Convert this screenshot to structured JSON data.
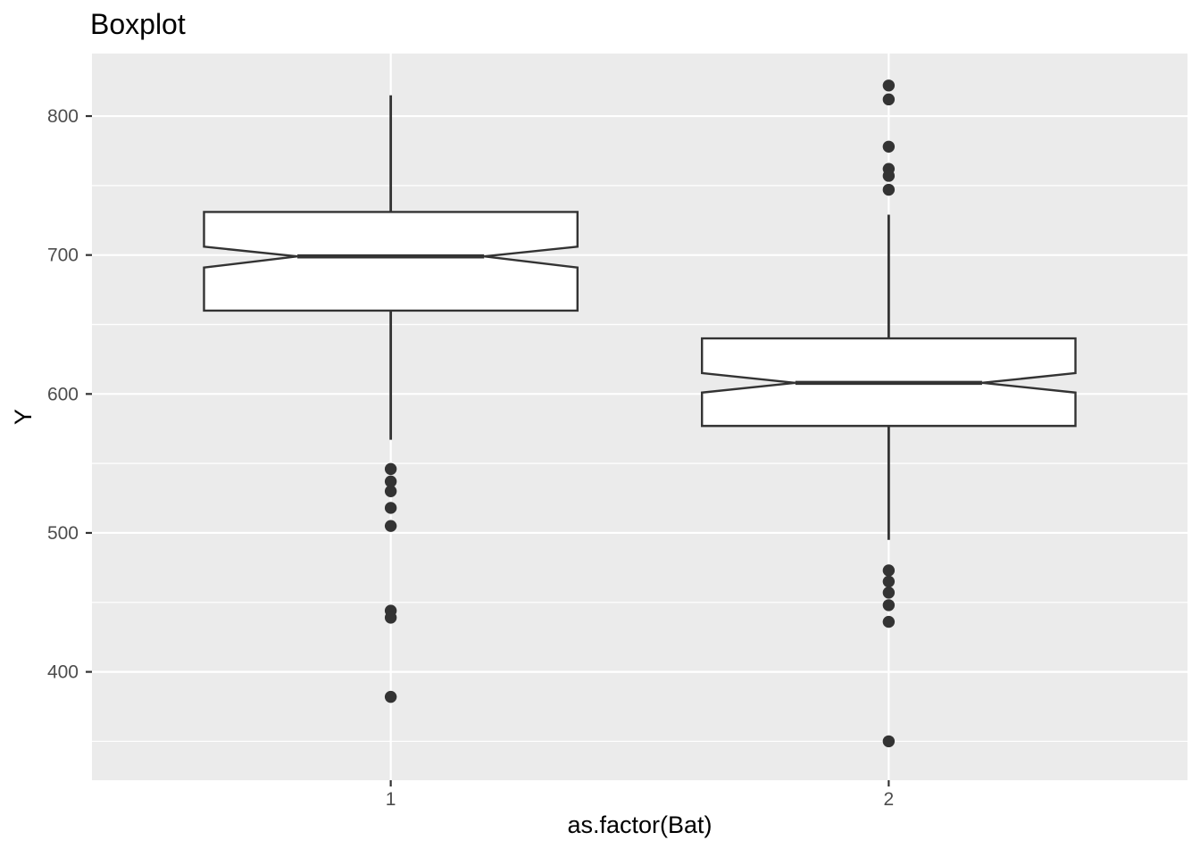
{
  "title": "Boxplot",
  "axes": {
    "x": {
      "title": "as.factor(Bat)",
      "categories": [
        "1",
        "2"
      ]
    },
    "y": {
      "title": "Y",
      "ticks": [
        400,
        500,
        600,
        700,
        800
      ],
      "minor_ticks": [
        350,
        450,
        550,
        650,
        750
      ],
      "range": [
        322,
        845
      ]
    }
  },
  "chart_data": {
    "type": "boxplot",
    "title": "Boxplot",
    "xlabel": "as.factor(Bat)",
    "ylabel": "Y",
    "ylim": [
      322,
      845
    ],
    "notched": true,
    "box_width": 0.75,
    "notch_width": 0.5,
    "categories": [
      "1",
      "2"
    ],
    "groups": [
      {
        "category": "1",
        "whisker_low": 567,
        "q1": 660,
        "median": 699,
        "q3": 731,
        "whisker_high": 815,
        "notch_low": 691,
        "notch_high": 706,
        "outliers": [
          546,
          537,
          530,
          518,
          505,
          444,
          439,
          382
        ]
      },
      {
        "category": "2",
        "whisker_low": 495,
        "q1": 577,
        "median": 608,
        "q3": 640,
        "whisker_high": 729,
        "notch_low": 601,
        "notch_high": 615,
        "outliers": [
          822,
          812,
          778,
          762,
          757,
          747,
          473,
          465,
          457,
          448,
          436,
          350
        ]
      }
    ]
  },
  "style": {
    "panel_bg": "#EBEBEB",
    "grid_color": "#FFFFFF",
    "box_stroke": "#333333",
    "box_fill": "#FFFFFF",
    "median_color": "#333333",
    "outlier_color": "#333333",
    "tick_mark_color": "#333333",
    "tick_label_color": "#4D4D4D",
    "axis_title_color": "#000000",
    "title_color": "#000000"
  }
}
